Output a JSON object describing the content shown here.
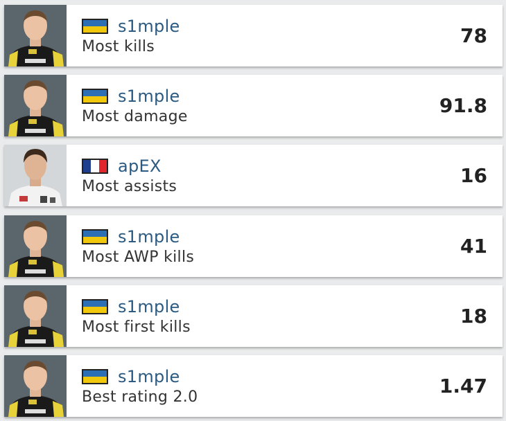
{
  "leaders": [
    {
      "player": "s1mple",
      "flag": "ukraine-flag",
      "stat": "Most kills",
      "value": "78"
    },
    {
      "player": "s1mple",
      "flag": "ukraine-flag",
      "stat": "Most damage",
      "value": "91.8"
    },
    {
      "player": "apEX",
      "flag": "france-flag",
      "stat": "Most assists",
      "value": "16"
    },
    {
      "player": "s1mple",
      "flag": "ukraine-flag",
      "stat": "Most AWP kills",
      "value": "41"
    },
    {
      "player": "s1mple",
      "flag": "ukraine-flag",
      "stat": "Most first kills",
      "value": "18"
    },
    {
      "player": "s1mple",
      "flag": "ukraine-flag",
      "stat": "Best rating 2.0",
      "value": "1.47"
    }
  ],
  "colors": {
    "player_link": "#2b5a82",
    "ukraine_blue": "#2d6fb5",
    "ukraine_yellow": "#f2c80d",
    "france_blue": "#1f3e8e",
    "france_red": "#e1262c"
  }
}
